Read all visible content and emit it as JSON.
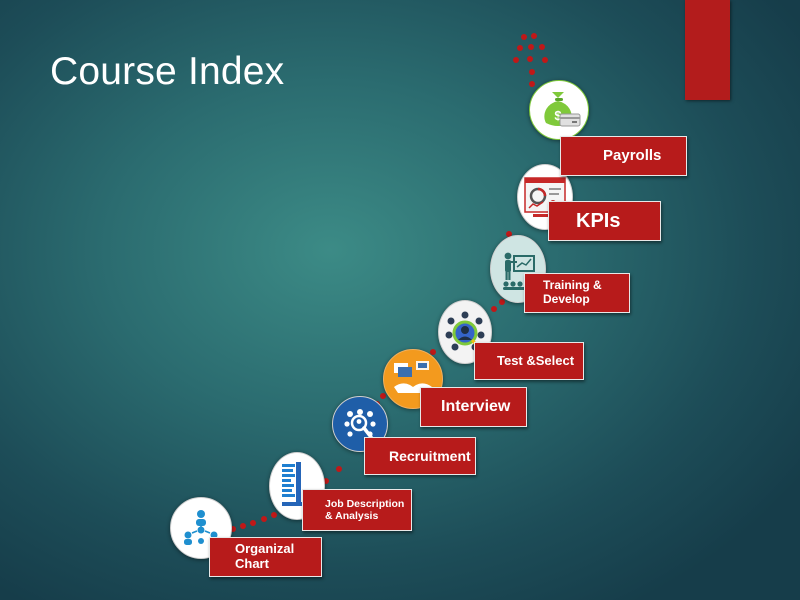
{
  "title": "Course Index",
  "steps": [
    {
      "label": "Organizal\nChart",
      "icon": "org-chart-icon"
    },
    {
      "label": "Job Description\n& Analysis",
      "icon": "job-description-icon"
    },
    {
      "label": "Recruitment",
      "icon": "recruitment-search-icon"
    },
    {
      "label": "Interview",
      "icon": "interview-icon"
    },
    {
      "label": "Test &Select",
      "icon": "candidate-select-icon"
    },
    {
      "label": "Training &\nDevelop",
      "icon": "training-presenter-icon"
    },
    {
      "label": "KPIs",
      "icon": "kpi-dashboard-icon"
    },
    {
      "label": "Payrolls",
      "icon": "money-bag-icon"
    }
  ],
  "colors": {
    "accent": "#b71b1b",
    "dots": "#c01818",
    "background": "#2b6c70"
  }
}
